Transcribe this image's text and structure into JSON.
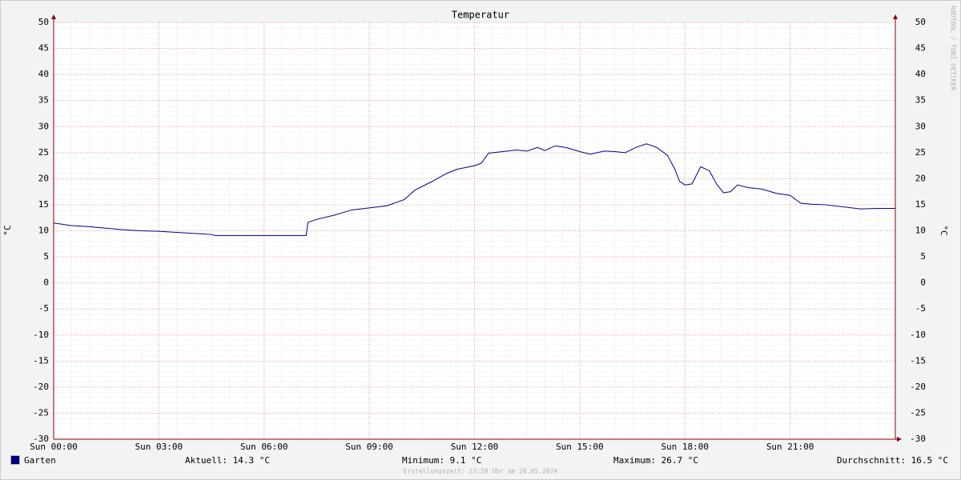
{
  "chart_data": {
    "type": "line",
    "title": "Temperatur",
    "y_label": "°C",
    "watermark": "RRDTOOL / TOBI OETIKER",
    "footer": "Erstellungszeit: 23:58 Uhr am 26.05.2024",
    "x": [
      0,
      0.5,
      1,
      1.5,
      2,
      2.5,
      3,
      3.5,
      4,
      4.5,
      4.6,
      5,
      6,
      7,
      7.2,
      7.25,
      7.5,
      8,
      8.5,
      9,
      9.5,
      10,
      10.3,
      10.8,
      11.2,
      11.5,
      12,
      12.2,
      12.4,
      12.8,
      13.2,
      13.5,
      13.8,
      14,
      14.3,
      14.6,
      15,
      15.3,
      15.7,
      16,
      16.3,
      16.6,
      16.9,
      17.2,
      17.5,
      17.7,
      17.85,
      18,
      18.2,
      18.45,
      18.7,
      18.9,
      19.1,
      19.3,
      19.5,
      19.8,
      20.2,
      20.6,
      21,
      21.3,
      21.6,
      22,
      22.5,
      23,
      23.5,
      24
    ],
    "series": [
      {
        "name": "Garten",
        "color": "#00008b",
        "values": [
          11.5,
          11.0,
          10.8,
          10.5,
          10.2,
          10.0,
          9.9,
          9.7,
          9.5,
          9.3,
          9.1,
          9.1,
          9.1,
          9.1,
          9.1,
          11.6,
          12.2,
          13.0,
          14.0,
          14.4,
          14.8,
          16.0,
          17.8,
          19.5,
          21.0,
          21.8,
          22.5,
          23.0,
          24.9,
          25.2,
          25.5,
          25.3,
          26.0,
          25.4,
          26.3,
          26.0,
          25.2,
          24.7,
          25.3,
          25.2,
          25.0,
          26.0,
          26.7,
          26.0,
          24.5,
          22.0,
          19.5,
          18.8,
          19.0,
          22.3,
          21.5,
          19.0,
          17.3,
          17.5,
          18.8,
          18.3,
          18.0,
          17.2,
          16.8,
          15.3,
          15.1,
          15.0,
          14.6,
          14.2,
          14.3,
          14.3
        ]
      }
    ],
    "stats": [
      "Aktuell: 14.3 °C",
      "Minimum: 9.1 °C",
      "Maximum: 26.7 °C",
      "Durchschnitt: 16.5 °C"
    ],
    "xlim": [
      0,
      24
    ],
    "xticks": [
      {
        "value": 0,
        "label": "Sun 00:00"
      },
      {
        "value": 3,
        "label": "Sun 03:00"
      },
      {
        "value": 6,
        "label": "Sun 06:00"
      },
      {
        "value": 9,
        "label": "Sun 09:00"
      },
      {
        "value": 12,
        "label": "Sun 12:00"
      },
      {
        "value": 15,
        "label": "Sun 15:00"
      },
      {
        "value": 18,
        "label": "Sun 18:00"
      },
      {
        "value": 21,
        "label": "Sun 21:00"
      }
    ],
    "ylim": [
      -30,
      50
    ],
    "yticks": [
      -30,
      -25,
      -20,
      -15,
      -10,
      -5,
      0,
      5,
      10,
      15,
      20,
      25,
      30,
      35,
      40,
      45,
      50
    ],
    "grid": true
  }
}
